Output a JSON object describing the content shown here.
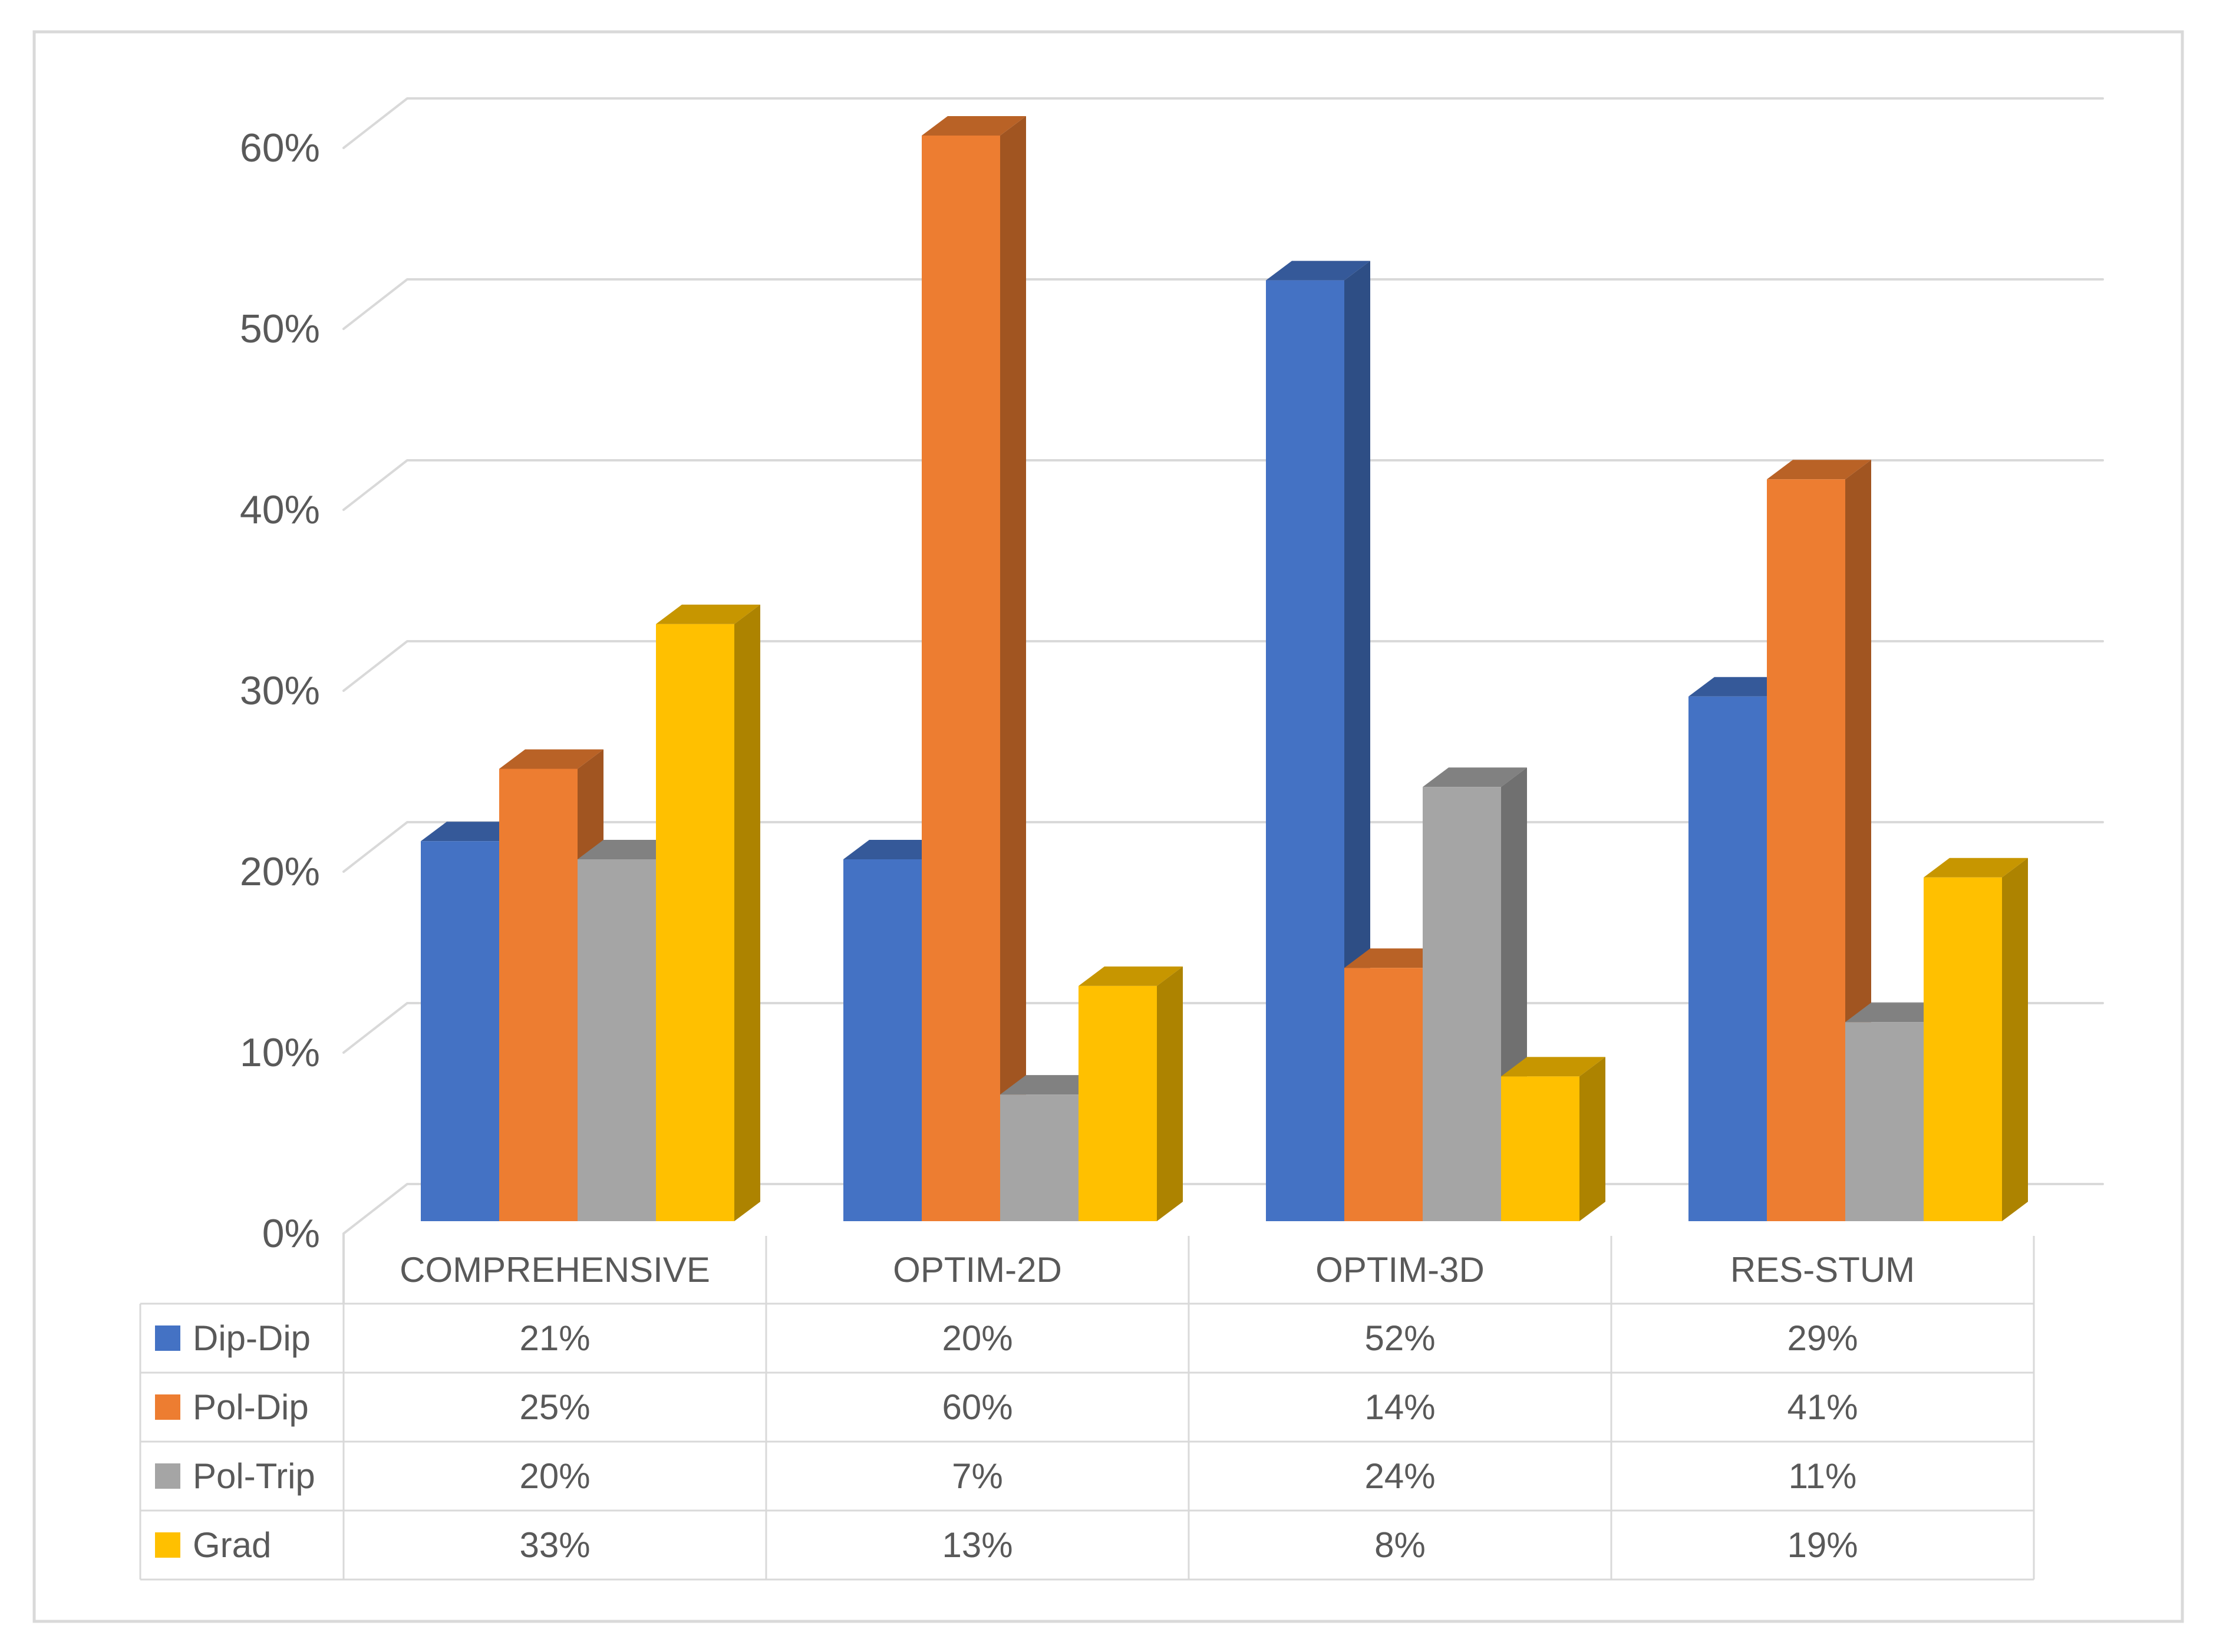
{
  "chart_data": {
    "type": "bar",
    "style": "3d-clustered-column",
    "title": "",
    "xlabel": "",
    "ylabel": "",
    "categories": [
      "COMPREHENSIVE",
      "OPTIM-2D",
      "OPTIM-3D",
      "RES-STUM"
    ],
    "series": [
      {
        "name": "Dip-Dip",
        "color": "#4472C4",
        "values": [
          21,
          20,
          52,
          29
        ]
      },
      {
        "name": "Pol-Dip",
        "color": "#ED7D31",
        "values": [
          25,
          60,
          14,
          41
        ]
      },
      {
        "name": "Pol-Trip",
        "color": "#A5A5A5",
        "values": [
          20,
          7,
          24,
          11
        ]
      },
      {
        "name": "Grad",
        "color": "#FFC000",
        "values": [
          33,
          13,
          8,
          19
        ]
      }
    ],
    "value_suffix": "%",
    "y_ticks": [
      "0%",
      "10%",
      "20%",
      "30%",
      "40%",
      "50%",
      "60%"
    ],
    "ylim": [
      0,
      60
    ],
    "grid": true,
    "legend_position": "data-table-left",
    "data_table": {
      "column_headers": [
        "COMPREHENSIVE",
        "OPTIM-2D",
        "OPTIM-3D",
        "RES-STUM"
      ],
      "rows": [
        {
          "label": "Dip-Dip",
          "cells": [
            "21%",
            "20%",
            "52%",
            "29%"
          ]
        },
        {
          "label": "Pol-Dip",
          "cells": [
            "25%",
            "60%",
            "14%",
            "41%"
          ]
        },
        {
          "label": "Pol-Trip",
          "cells": [
            "20%",
            "7%",
            "24%",
            "11%"
          ]
        },
        {
          "label": "Grad",
          "cells": [
            "33%",
            "13%",
            "8%",
            "19%"
          ]
        }
      ]
    }
  },
  "colors": {
    "gridline": "#D9D9D9",
    "table_border": "#D9D9D9",
    "page_border": "#D9D9D9",
    "text": "#595959",
    "background": "#FFFFFF"
  }
}
